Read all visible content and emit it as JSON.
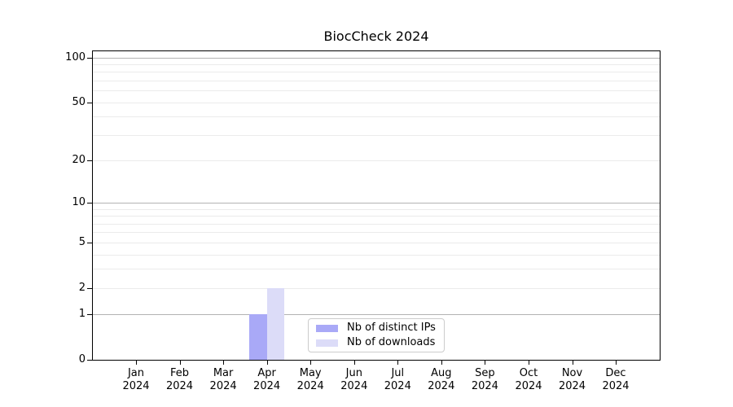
{
  "chart_data": {
    "type": "bar",
    "title": "BiocCheck 2024",
    "categories": [
      "Jan",
      "Feb",
      "Mar",
      "Apr",
      "May",
      "Jun",
      "Jul",
      "Aug",
      "Sep",
      "Oct",
      "Nov",
      "Dec"
    ],
    "category_sublabel": "2024",
    "series": [
      {
        "name": "Nb of distinct IPs",
        "color": "#a9a9f7",
        "values": [
          0,
          0,
          0,
          1,
          0,
          0,
          0,
          0,
          0,
          0,
          0,
          0
        ]
      },
      {
        "name": "Nb of downloads",
        "color": "#dcdcf8",
        "values": [
          0,
          0,
          0,
          2,
          0,
          0,
          0,
          0,
          0,
          0,
          0,
          0
        ]
      }
    ],
    "y_axis": {
      "scale": "log1p",
      "max": 110,
      "ticks": [
        0,
        1,
        2,
        5,
        10,
        20,
        50,
        100
      ],
      "major_gridlines": [
        1,
        10,
        100
      ],
      "minor_gridlines": [
        2,
        3,
        4,
        5,
        6,
        7,
        8,
        9,
        20,
        30,
        40,
        50,
        60,
        70,
        80,
        90
      ]
    },
    "legend_position": "lower center",
    "colors": {
      "major_grid": "#b3b3b3",
      "minor_grid": "#ebebeb",
      "spine": "#000000",
      "background": "#ffffff"
    }
  }
}
